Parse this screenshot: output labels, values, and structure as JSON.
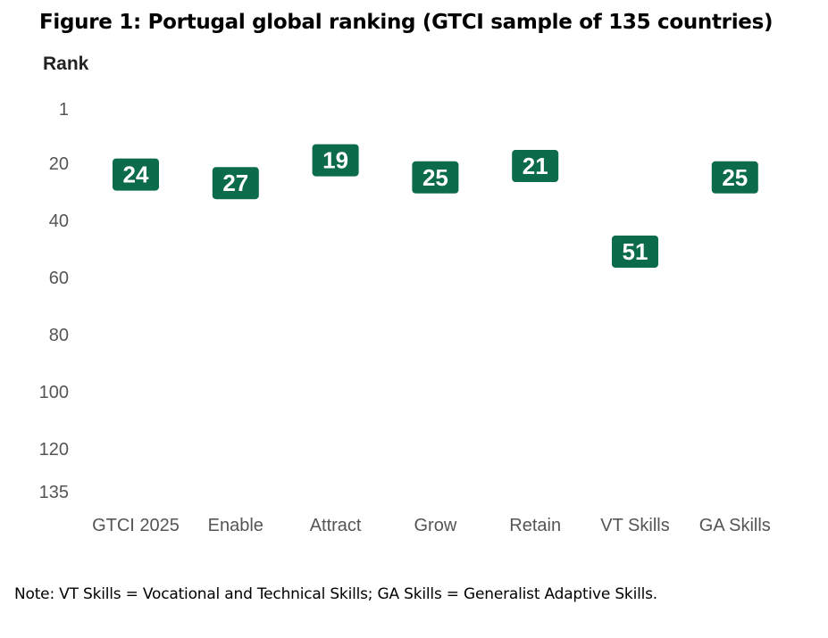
{
  "chart_data": {
    "type": "scatter",
    "title": "Figure 1: Portugal global ranking (GTCI sample of 135 countries)",
    "ylabel": "Rank",
    "xlabel": "",
    "y_inverted": true,
    "ylim": [
      1,
      135
    ],
    "yticks": [
      1,
      20,
      40,
      60,
      80,
      100,
      120,
      135
    ],
    "categories": [
      "GTCI 2025",
      "Enable",
      "Attract",
      "Grow",
      "Retain",
      "VT Skills",
      "GA Skills"
    ],
    "values": [
      24,
      27,
      19,
      25,
      21,
      51,
      25
    ],
    "marker_color": "#0b6b4a",
    "grid": false,
    "note": "Note: VT Skills = Vocational and Technical Skills; GA Skills = Generalist Adaptive Skills."
  }
}
